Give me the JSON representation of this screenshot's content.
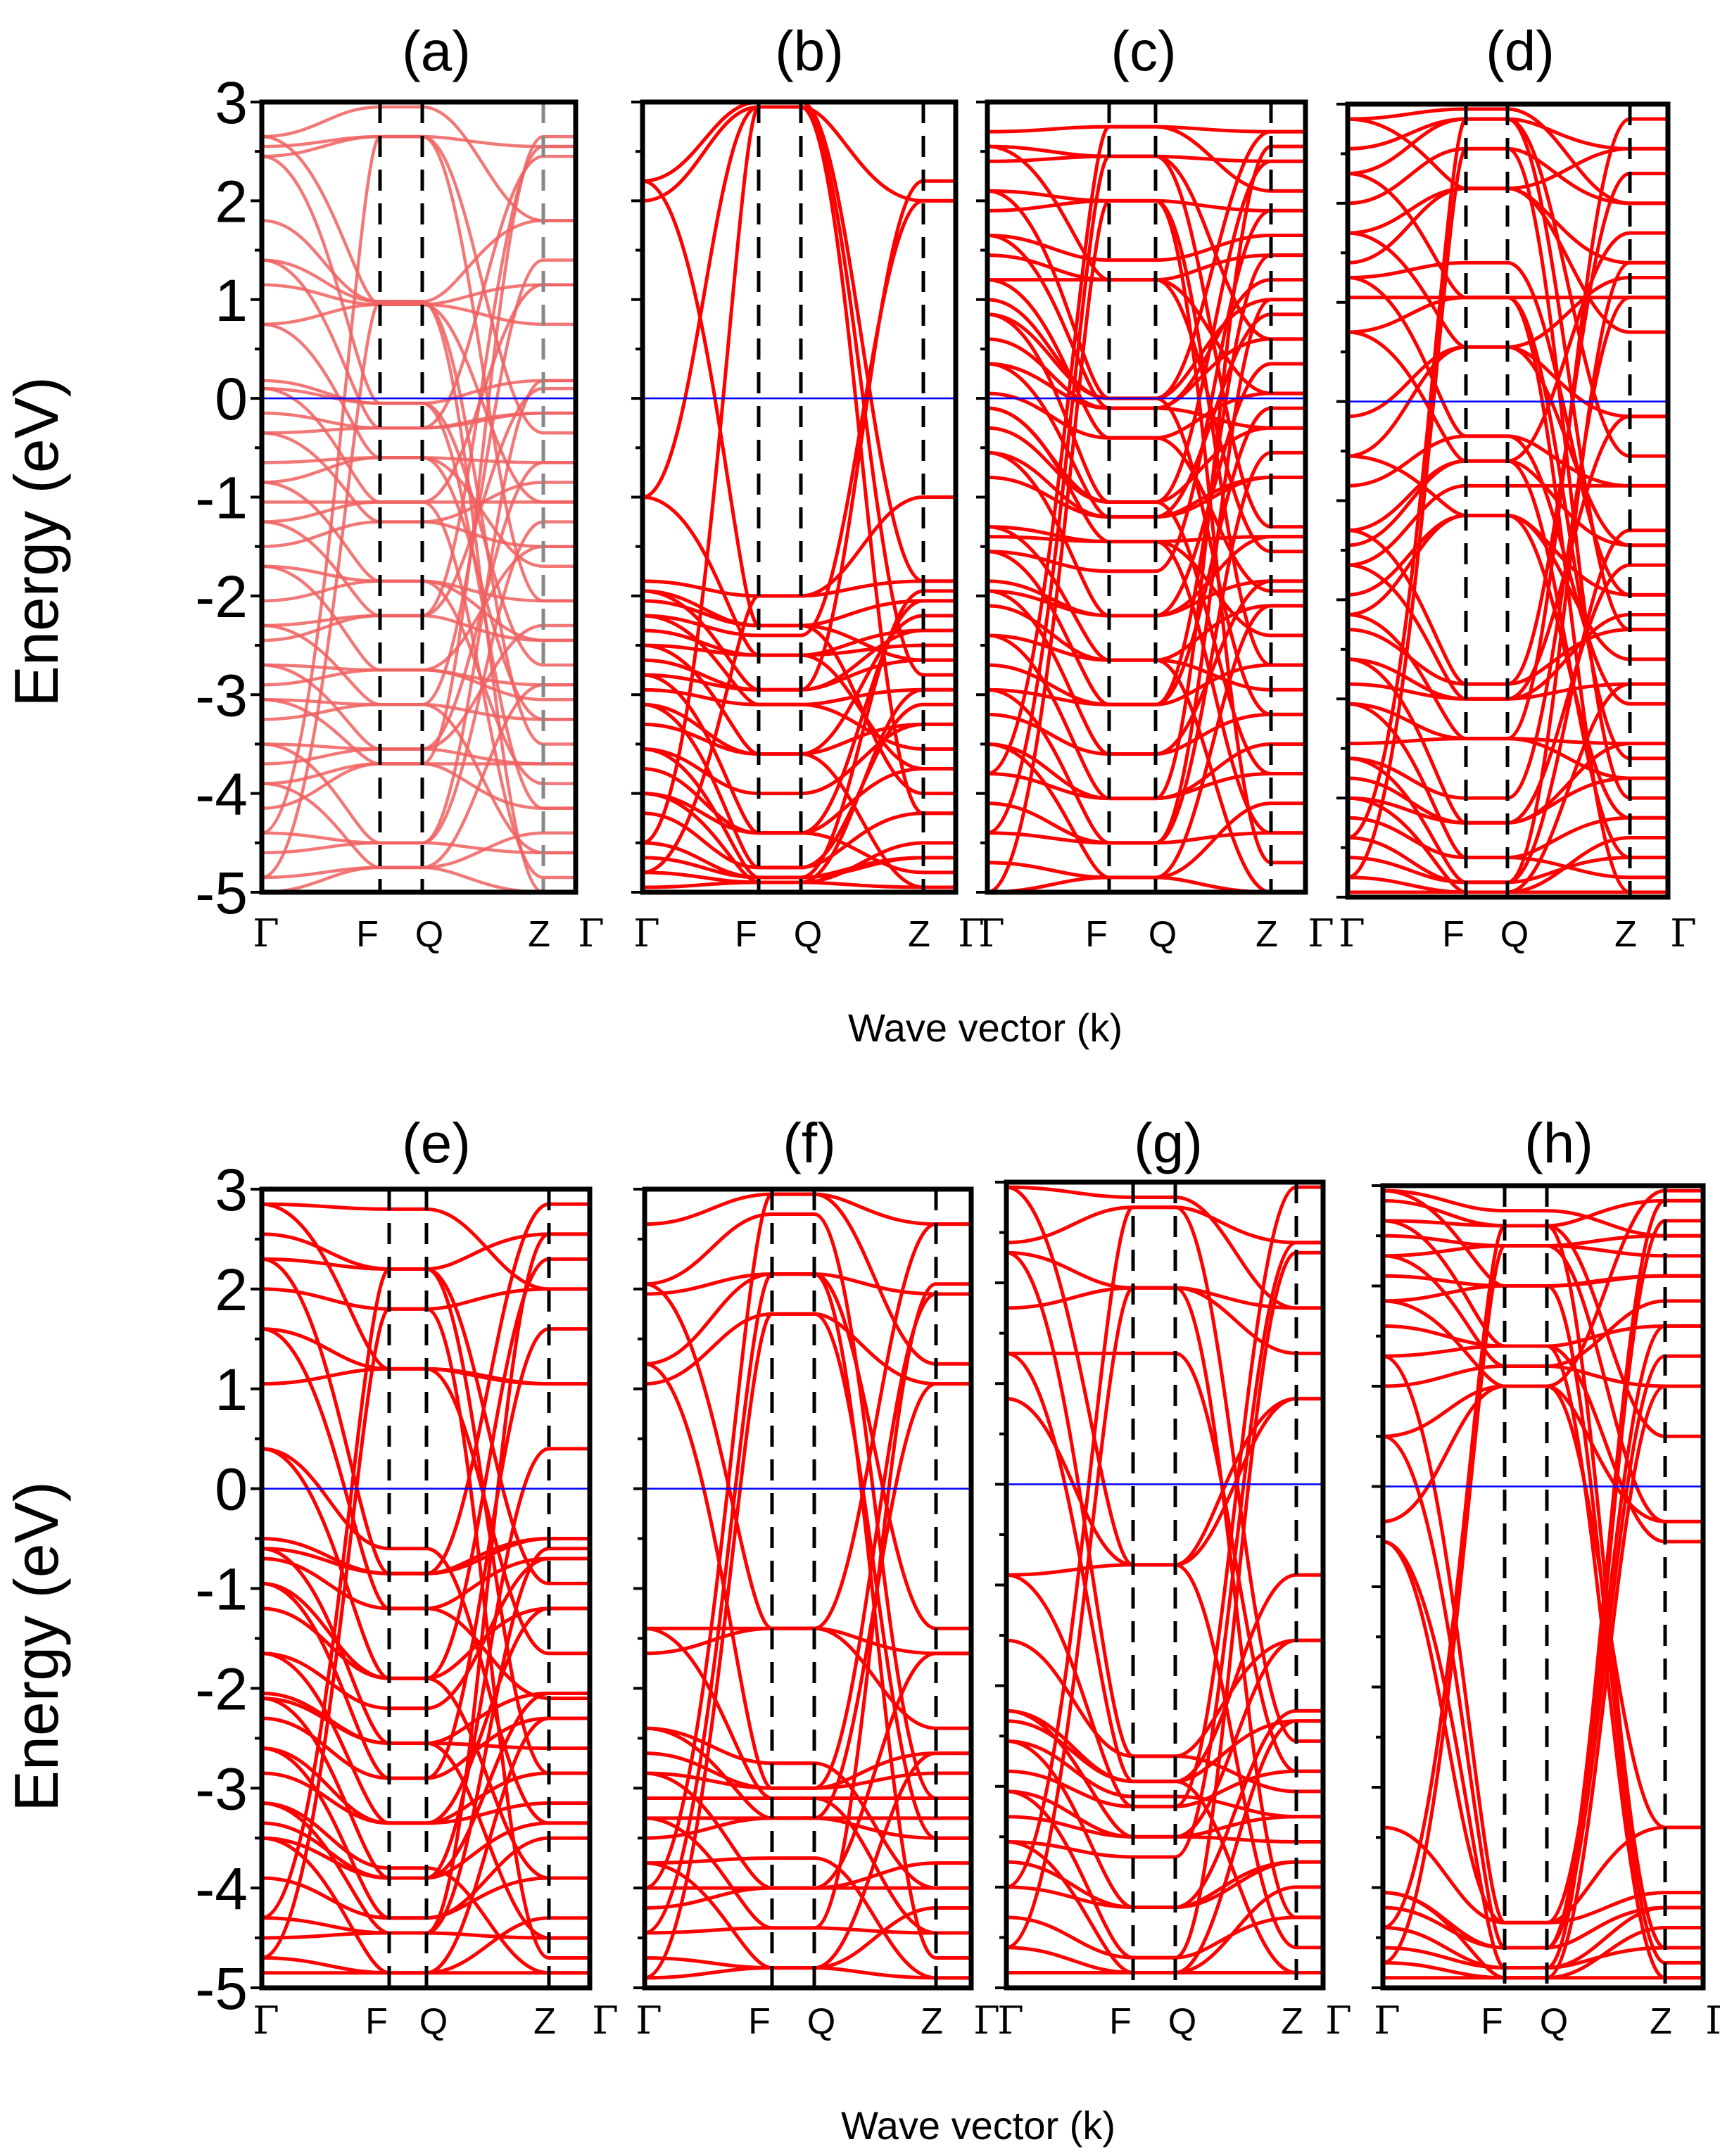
{
  "chart_data": [
    {
      "type": "line",
      "panel": "(a)",
      "title": "(a)",
      "ylim": [
        -5,
        3
      ],
      "yticks": [
        "3",
        "2",
        "1",
        "0",
        "-1",
        "-2",
        "-3",
        "-4",
        "-5"
      ],
      "kpoints": [
        "Γ",
        "F",
        "Q",
        "Z",
        "Γ"
      ],
      "fermi_level": 0,
      "line_color": "#f06060",
      "bands_edge_energies": [
        -5.0,
        -4.85,
        -4.6,
        -4.4,
        -4.15,
        -3.9,
        -3.7,
        -3.5,
        -3.25,
        -3.05,
        -2.9,
        -2.7,
        -2.45,
        -2.3,
        -2.05,
        -1.7,
        -1.5,
        -1.25,
        -1.05,
        -0.85,
        -0.65,
        -0.35,
        -0.15,
        0.1,
        0.18,
        0.75,
        1.15,
        1.4,
        1.8,
        2.45,
        2.55,
        2.65
      ],
      "bands_mid_energies": [
        -4.75,
        -4.5,
        -3.7,
        -3.55,
        -3.1,
        -2.75,
        -2.2,
        -1.85,
        -1.25,
        -1.05,
        -0.6,
        -0.3,
        -0.05,
        0.95,
        0.98,
        2.65,
        2.95
      ]
    },
    {
      "type": "line",
      "panel": "(b)",
      "title": "(b)",
      "ylim": [
        -5,
        3
      ],
      "kpoints": [
        "Γ",
        "F",
        "Q",
        "Z",
        "Γ"
      ],
      "fermi_level": 0,
      "line_color": "#ff0000",
      "bands_edge_energies": [
        -4.95,
        -4.8,
        -4.65,
        -4.5,
        -4.2,
        -4.0,
        -3.75,
        -3.55,
        -3.3,
        -3.1,
        -2.95,
        -2.8,
        -2.65,
        -2.5,
        -2.35,
        -2.2,
        -2.05,
        -1.95,
        -1.85,
        -1.0,
        2.0,
        2.2
      ],
      "bands_mid_energies": [
        -4.9,
        -4.85,
        -4.75,
        -4.4,
        -4.0,
        -3.6,
        -3.1,
        -2.95,
        -2.6,
        -2.4,
        -2.3,
        -2.0,
        2.95,
        3.0
      ]
    },
    {
      "type": "line",
      "panel": "(c)",
      "title": "(c)",
      "ylim": [
        -5,
        3
      ],
      "kpoints": [
        "Γ",
        "F",
        "Q",
        "Z",
        "Γ"
      ],
      "fermi_level": 0,
      "line_color": "#ff0000",
      "bands_edge_energies": [
        -5.0,
        -4.7,
        -4.4,
        -4.1,
        -3.8,
        -3.5,
        -3.2,
        -2.95,
        -2.7,
        -2.4,
        -2.1,
        -1.95,
        -1.85,
        -1.55,
        -1.4,
        -1.3,
        -0.8,
        -0.55,
        -0.3,
        -0.1,
        0.05,
        0.35,
        0.6,
        0.85,
        1.0,
        1.2,
        1.45,
        1.65,
        1.9,
        2.1,
        2.4,
        2.55,
        2.7
      ],
      "bands_mid_energies": [
        -4.85,
        -4.5,
        -4.05,
        -3.6,
        -3.1,
        -2.65,
        -2.2,
        -1.75,
        -1.45,
        -1.2,
        -1.05,
        -0.4,
        -0.1,
        0.0,
        1.2,
        1.4,
        2.0,
        2.45,
        2.75
      ]
    },
    {
      "type": "line",
      "panel": "(d)",
      "title": "(d)",
      "ylim": [
        -5,
        3
      ],
      "kpoints": [
        "Γ",
        "F",
        "Q",
        "Z",
        "Γ"
      ],
      "fermi_level": 0,
      "line_color": "#ff0000",
      "bands_edge_energies": [
        -4.95,
        -4.8,
        -4.6,
        -4.4,
        -4.2,
        -4.0,
        -3.8,
        -3.6,
        -3.45,
        -3.05,
        -2.85,
        -2.6,
        -2.3,
        -2.15,
        -1.95,
        -1.65,
        -1.45,
        -1.3,
        -0.85,
        -0.55,
        -0.15,
        0.7,
        1.05,
        1.25,
        1.4,
        1.7,
        2.0,
        2.3,
        2.55,
        2.85
      ],
      "bands_mid_energies": [
        -4.95,
        -4.85,
        -4.6,
        -4.25,
        -4.0,
        -3.4,
        -3.0,
        -2.85,
        -1.15,
        -0.85,
        -0.6,
        -0.35,
        0.55,
        1.05,
        1.4,
        2.15,
        2.55,
        2.85,
        2.95
      ]
    },
    {
      "type": "line",
      "panel": "(e)",
      "title": "(e)",
      "ylim": [
        -5,
        3
      ],
      "yticks": [
        "3",
        "2",
        "1",
        "0",
        "-1",
        "-2",
        "-3",
        "-4",
        "-5"
      ],
      "kpoints": [
        "Γ",
        "F",
        "Q",
        "Z",
        "Γ"
      ],
      "fermi_level": 0,
      "line_color": "#ff0000",
      "bands_edge_energies": [
        -4.85,
        -4.7,
        -4.5,
        -4.3,
        -3.9,
        -3.5,
        -3.35,
        -3.15,
        -2.85,
        -2.6,
        -2.3,
        -2.1,
        -2.05,
        -1.65,
        -1.2,
        -0.95,
        -0.7,
        -0.6,
        -0.5,
        0.4,
        1.05,
        1.6,
        2.0,
        2.3,
        2.55,
        2.85
      ],
      "bands_mid_energies": [
        -4.85,
        -4.45,
        -4.3,
        -3.9,
        -3.8,
        -3.35,
        -2.9,
        -2.55,
        -2.2,
        -1.9,
        -1.2,
        -0.85,
        -0.6,
        1.2,
        1.8,
        2.2,
        2.8
      ]
    },
    {
      "type": "line",
      "panel": "(f)",
      "title": "(f)",
      "ylim": [
        -5,
        3
      ],
      "kpoints": [
        "Γ",
        "F",
        "Q",
        "Z",
        "Γ"
      ],
      "fermi_level": 0,
      "line_color": "#ff0000",
      "bands_edge_energies": [
        -4.9,
        -4.7,
        -4.45,
        -4.2,
        -4.0,
        -3.75,
        -3.5,
        -3.3,
        -3.1,
        -2.85,
        -2.65,
        -2.4,
        -1.65,
        -1.4,
        1.05,
        1.25,
        1.95,
        2.05,
        2.65
      ],
      "bands_mid_energies": [
        -4.8,
        -4.4,
        -4.0,
        -3.7,
        -3.3,
        -3.1,
        -3.0,
        -2.75,
        -1.4,
        1.75,
        2.15,
        2.75,
        2.95
      ]
    },
    {
      "type": "line",
      "panel": "(g)",
      "title": "(g)",
      "ylim": [
        -5,
        3
      ],
      "kpoints": [
        "Γ",
        "F",
        "Q",
        "Z",
        "Γ"
      ],
      "fermi_level": 0,
      "line_color": "#ff0000",
      "bands_edge_energies": [
        -4.85,
        -4.6,
        -4.3,
        -4.0,
        -3.75,
        -3.55,
        -3.3,
        -3.05,
        -2.85,
        -2.55,
        -2.35,
        -2.25,
        -1.55,
        -0.9,
        0.85,
        1.3,
        1.75,
        2.3,
        2.4,
        2.95
      ],
      "bands_mid_energies": [
        -4.85,
        -4.7,
        -4.2,
        -3.7,
        -3.5,
        -3.2,
        -3.1,
        -2.95,
        -2.7,
        -0.8,
        1.3,
        1.95,
        2.75,
        2.85
      ]
    },
    {
      "type": "line",
      "panel": "(h)",
      "title": "(h)",
      "ylim": [
        -5,
        3
      ],
      "kpoints": [
        "Γ",
        "F",
        "Q",
        "Z",
        "Γ"
      ],
      "fermi_level": 0,
      "line_color": "#ff0000",
      "bands_edge_energies": [
        -4.9,
        -4.75,
        -4.6,
        -4.4,
        -4.2,
        -4.05,
        -3.4,
        -0.55,
        -0.35,
        0.5,
        1.0,
        1.3,
        1.6,
        1.85,
        2.1,
        2.3,
        2.5,
        2.65,
        2.85,
        2.95
      ],
      "bands_mid_energies": [
        -4.9,
        -4.8,
        -4.6,
        -4.35,
        1.0,
        1.2,
        1.4,
        2.0,
        2.4,
        2.6,
        2.75
      ]
    }
  ],
  "axis_labels": {
    "ylabel_top": "Energy (eV)",
    "ylabel_bottom": "Energy (eV)",
    "xlabel_top": "Wave vector (k)",
    "xlabel_bottom": "Wave vector (k)"
  },
  "colors": {
    "fermi_line": "#0000ff",
    "frame": "#000000",
    "band_default": "#ff0000",
    "band_light": "#f06060"
  }
}
